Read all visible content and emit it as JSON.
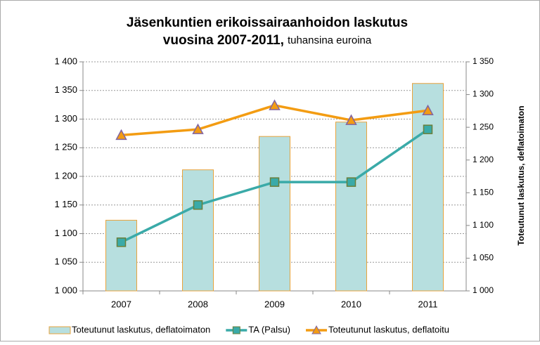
{
  "chart_data": {
    "type": "bar-line",
    "title": [
      "Jäsenkuntien  erikoissairaanhoidon laskutus",
      "vuosina 2007-2011,"
    ],
    "subtitle": "tuhansina euroina",
    "y2_label": "Toteutunut laskutus, deflatoimaton",
    "categories": [
      "2007",
      "2008",
      "2009",
      "2010",
      "2011"
    ],
    "series": [
      {
        "name": "Toteutunut laskutus, deflatoimaton",
        "type": "bar",
        "axis": "y2",
        "color": "#b7dfdf",
        "values": [
          1108,
          1185,
          1236,
          1258,
          1317
        ]
      },
      {
        "name": "TA (Palsu)",
        "type": "line",
        "color": "#3aaaa8",
        "values": [
          1085,
          1150,
          1190,
          1190,
          1282
        ]
      },
      {
        "name": "Toteutunut laskutus, deflatoitu",
        "type": "line",
        "color": "#f39c12",
        "values": [
          1272,
          1282,
          1324,
          1298,
          1315
        ]
      }
    ],
    "ylim": [
      1000,
      1400
    ],
    "yticks": [
      {
        "value": 1000,
        "label": "1 000"
      },
      {
        "value": 1050,
        "label": "1 050"
      },
      {
        "value": 1100,
        "label": "1 100"
      },
      {
        "value": 1150,
        "label": "1 150"
      },
      {
        "value": 1200,
        "label": "1 200"
      },
      {
        "value": 1250,
        "label": "1 250"
      },
      {
        "value": 1300,
        "label": "1 300"
      },
      {
        "value": 1350,
        "label": "1 350"
      },
      {
        "value": 1400,
        "label": "1 400"
      }
    ],
    "y2lim": [
      1000,
      1350
    ],
    "y2ticks": [
      {
        "value": 1000,
        "label": "1 000"
      },
      {
        "value": 1050,
        "label": "1 050"
      },
      {
        "value": 1100,
        "label": "1 100"
      },
      {
        "value": 1150,
        "label": "1 150"
      },
      {
        "value": 1200,
        "label": "1 200"
      },
      {
        "value": 1250,
        "label": "1 250"
      },
      {
        "value": 1300,
        "label": "1 300"
      },
      {
        "value": 1350,
        "label": "1 350"
      }
    ],
    "grid": true
  }
}
